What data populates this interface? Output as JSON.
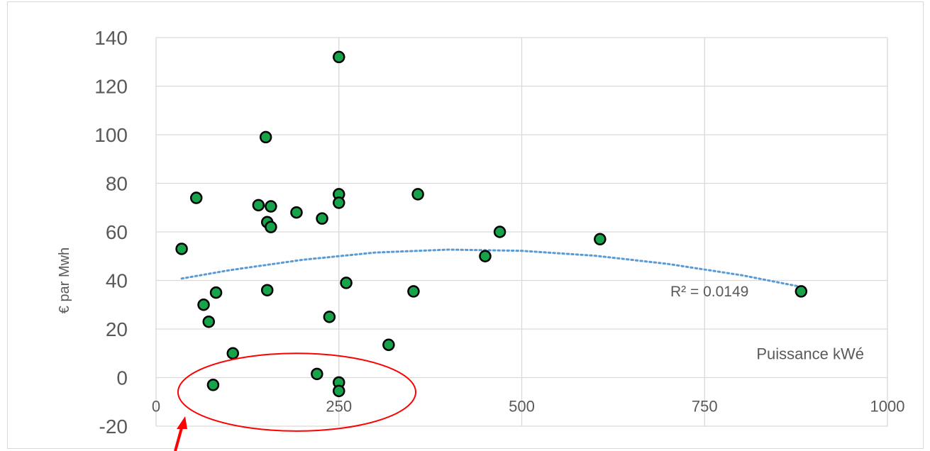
{
  "chart_data": {
    "type": "scatter",
    "title": "",
    "xlabel": "Puissance kWé",
    "ylabel": "€ par Mwh",
    "xlim": [
      0,
      1000
    ],
    "ylim": [
      -20,
      140
    ],
    "x_ticks": [
      0,
      250,
      500,
      750,
      1000
    ],
    "y_ticks": [
      -20,
      0,
      20,
      40,
      60,
      80,
      100,
      120,
      140
    ],
    "grid": true,
    "series": [
      {
        "marker_color": "#16a34a",
        "points": [
          {
            "x": 35,
            "y": 53
          },
          {
            "x": 55,
            "y": 74
          },
          {
            "x": 65,
            "y": 30
          },
          {
            "x": 72,
            "y": 23
          },
          {
            "x": 78,
            "y": -3
          },
          {
            "x": 82,
            "y": 35
          },
          {
            "x": 105,
            "y": 10
          },
          {
            "x": 140,
            "y": 71
          },
          {
            "x": 150,
            "y": 99
          },
          {
            "x": 152,
            "y": 64
          },
          {
            "x": 152,
            "y": 36
          },
          {
            "x": 157,
            "y": 70.5
          },
          {
            "x": 157,
            "y": 62
          },
          {
            "x": 192,
            "y": 68
          },
          {
            "x": 220,
            "y": 1.5
          },
          {
            "x": 227,
            "y": 65.5
          },
          {
            "x": 237,
            "y": 25
          },
          {
            "x": 250,
            "y": 132
          },
          {
            "x": 250,
            "y": 75.5
          },
          {
            "x": 250,
            "y": 72
          },
          {
            "x": 250,
            "y": -2
          },
          {
            "x": 250,
            "y": -5.5
          },
          {
            "x": 260,
            "y": 39
          },
          {
            "x": 318,
            "y": 13.5
          },
          {
            "x": 352,
            "y": 35.5
          },
          {
            "x": 358,
            "y": 75.5
          },
          {
            "x": 450,
            "y": 50
          },
          {
            "x": 470,
            "y": 60
          },
          {
            "x": 607,
            "y": 57
          },
          {
            "x": 882,
            "y": 35.5
          }
        ]
      }
    ],
    "trendline": {
      "type": "polynomial",
      "color": "#5b9bd5",
      "label": "R² = 0.0149",
      "points": [
        {
          "x": 35,
          "y": 40.8
        },
        {
          "x": 100,
          "y": 44.2
        },
        {
          "x": 200,
          "y": 48.5
        },
        {
          "x": 300,
          "y": 51.5
        },
        {
          "x": 400,
          "y": 52.7
        },
        {
          "x": 500,
          "y": 52.2
        },
        {
          "x": 600,
          "y": 50.2
        },
        {
          "x": 700,
          "y": 46.8
        },
        {
          "x": 800,
          "y": 42.2
        },
        {
          "x": 880,
          "y": 37.5
        }
      ]
    },
    "annotations": [
      {
        "type": "ellipse",
        "color": "#ff0000",
        "x_range": [
          30,
          355
        ],
        "y_range": [
          -22,
          10
        ]
      },
      {
        "type": "arrow",
        "color": "#ff0000"
      }
    ]
  }
}
